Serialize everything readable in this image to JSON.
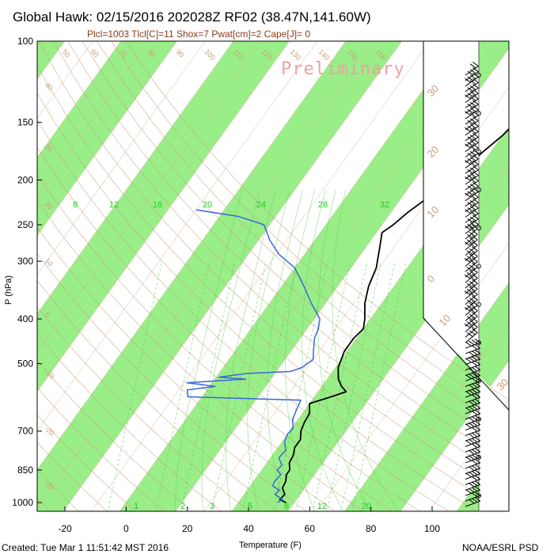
{
  "title": "Global Hawk: 02/15/2016 202028Z RF02 (38.47N,141.60W)",
  "subtitle": "Plcl=1003 Tlcl[C]=11 Shox=7 Pwat[cm]=2 Cape[J]= 0",
  "watermark": "Preliminary",
  "footer_left": "Created: Tue Mar  1 11:51:42 MST 2016",
  "footer_right": "NOAA/ESRL PSD",
  "colors": {
    "band": "#99ee88",
    "temperature": "#000000",
    "dewpoint": "#3a68d8",
    "isotherm_label": "#c8a07a",
    "mixing_ratio": "#22cc22",
    "subtitle": "#8b3a1a"
  },
  "chart_data": {
    "type": "skew-t",
    "xlabel": "Temperature (F)",
    "ylabel": "P (hPa)",
    "x_ticks": [
      "-20",
      "0",
      "20",
      "40",
      "60",
      "80",
      "100"
    ],
    "y_ticks": [
      "100",
      "150",
      "200",
      "250",
      "300",
      "400",
      "500",
      "700",
      "850",
      "1000"
    ],
    "xlim": [
      -28,
      120
    ],
    "ylim": [
      1050,
      100
    ],
    "y_scale": "log",
    "mixing_ratio_labels": [
      "8",
      "12",
      "16",
      "20",
      "24",
      "28",
      "32"
    ],
    "bottom_mixing_labels": [
      "1",
      "2",
      "3",
      "5",
      "8",
      "12",
      "20"
    ],
    "isotherm_labels_right": [
      "30",
      "20",
      "10",
      "0",
      "10",
      "20",
      "30"
    ],
    "isotherm_labels_top": [
      "50",
      "60",
      "70",
      "80",
      "90",
      "100",
      "110",
      "120",
      "130",
      "140",
      "150",
      "160"
    ],
    "theta_labels_left": [
      "40",
      "30",
      "20",
      "10",
      "0",
      "-10",
      "-20",
      "-30"
    ],
    "series": [
      {
        "name": "Temperature",
        "points": [
          [
            1000,
            57
          ],
          [
            985,
            54
          ],
          [
            960,
            54.5
          ],
          [
            930,
            52
          ],
          [
            900,
            51.5
          ],
          [
            870,
            50
          ],
          [
            850,
            50
          ],
          [
            820,
            48
          ],
          [
            790,
            47.5
          ],
          [
            760,
            46
          ],
          [
            730,
            46
          ],
          [
            700,
            44
          ],
          [
            670,
            43
          ],
          [
            640,
            42.5
          ],
          [
            610,
            40
          ],
          [
            590,
            46
          ],
          [
            575,
            50
          ],
          [
            560,
            47
          ],
          [
            540,
            44
          ],
          [
            510,
            41
          ],
          [
            470,
            39
          ],
          [
            440,
            39
          ],
          [
            420,
            40
          ],
          [
            400,
            38
          ],
          [
            370,
            34
          ],
          [
            340,
            31
          ],
          [
            310,
            29
          ],
          [
            280,
            25
          ],
          [
            260,
            22
          ],
          [
            250,
            24
          ],
          [
            235,
            26
          ],
          [
            220,
            29
          ],
          [
            205,
            32
          ],
          [
            190,
            35
          ],
          [
            175,
            37
          ],
          [
            160,
            40
          ],
          [
            145,
            42
          ],
          [
            130,
            45
          ],
          [
            118,
            48
          ],
          [
            110,
            48
          ],
          [
            103,
            48
          ]
        ]
      },
      {
        "name": "Dewpoint",
        "points": [
          [
            1000,
            54
          ],
          [
            985,
            55
          ],
          [
            960,
            51
          ],
          [
            940,
            51.5
          ],
          [
            920,
            48
          ],
          [
            900,
            47.5
          ],
          [
            870,
            48
          ],
          [
            850,
            45.5
          ],
          [
            830,
            46
          ],
          [
            800,
            43
          ],
          [
            770,
            43.5
          ],
          [
            740,
            41
          ],
          [
            710,
            40
          ],
          [
            690,
            40.5
          ],
          [
            660,
            38
          ],
          [
            630,
            37
          ],
          [
            600,
            36
          ],
          [
            590,
            -5
          ],
          [
            570,
            -7
          ],
          [
            560,
            2
          ],
          [
            550,
            -9
          ],
          [
            540,
            11
          ],
          [
            535,
            1
          ],
          [
            525,
            10
          ],
          [
            520,
            25
          ],
          [
            510,
            28
          ],
          [
            500,
            29
          ],
          [
            490,
            30
          ],
          [
            470,
            28
          ],
          [
            440,
            25
          ],
          [
            420,
            24
          ],
          [
            400,
            22
          ],
          [
            370,
            15
          ],
          [
            340,
            8
          ],
          [
            310,
            0
          ],
          [
            290,
            -9
          ],
          [
            270,
            -16
          ],
          [
            250,
            -22
          ],
          [
            240,
            -33
          ],
          [
            232,
            -50
          ]
        ]
      }
    ],
    "wind_barbs_count": 80
  }
}
